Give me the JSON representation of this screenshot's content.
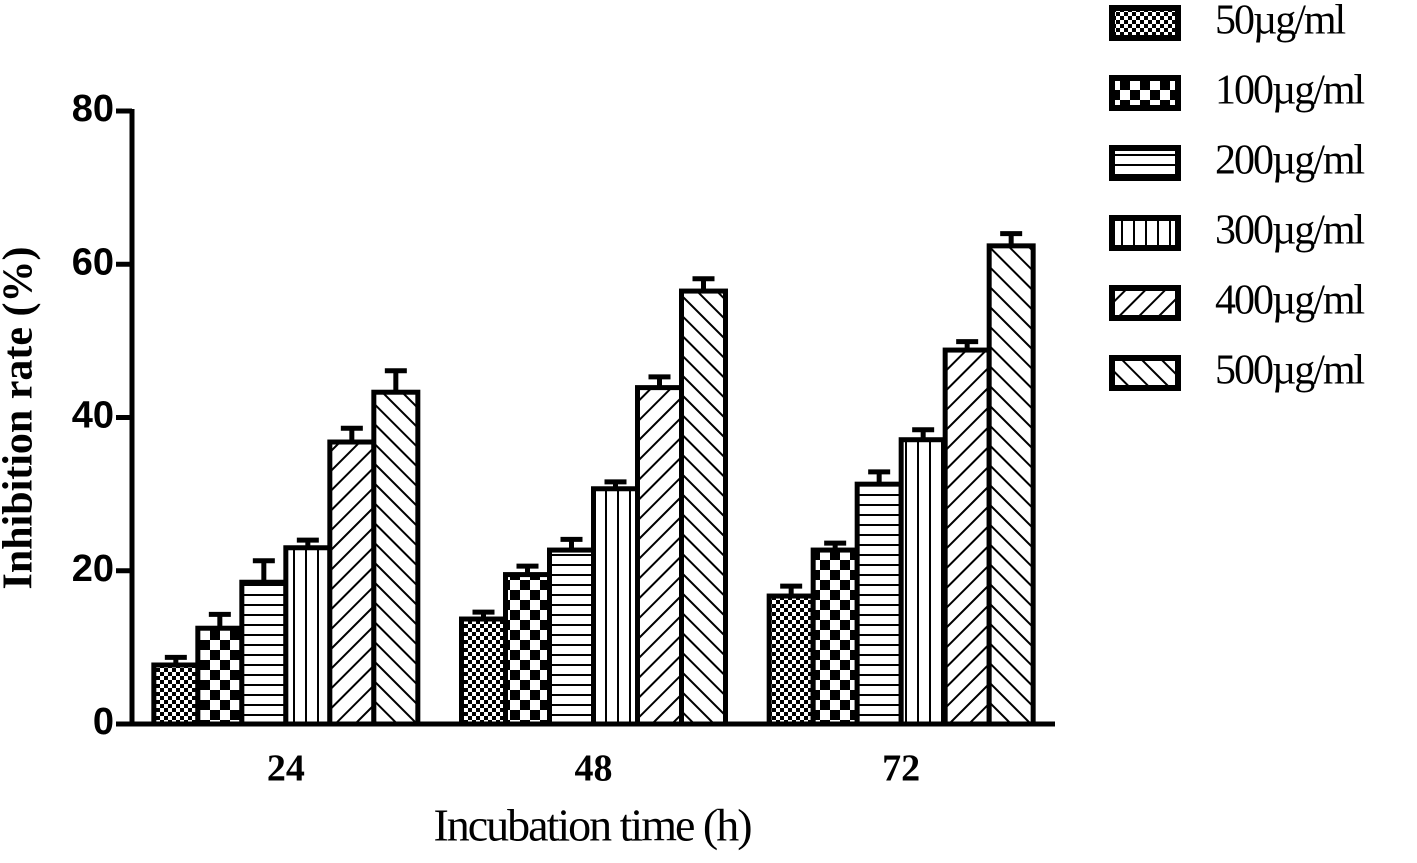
{
  "chart_data": {
    "type": "bar",
    "y_label": "Inhibition rate (%)",
    "x_label": "Incubation time (h)",
    "categories": [
      "24",
      "48",
      "72"
    ],
    "series": [
      {
        "name": "50µg/ml",
        "color": "#000000",
        "pattern": "checker-small",
        "values": [
          7.7,
          13.7,
          16.7
        ],
        "errors": [
          1.0,
          0.9,
          1.3
        ]
      },
      {
        "name": "100µg/ml",
        "color": "#000000",
        "pattern": "checker-large",
        "values": [
          12.5,
          19.5,
          22.7
        ],
        "errors": [
          1.8,
          1.1,
          0.9
        ]
      },
      {
        "name": "200µg/ml",
        "color": "#000000",
        "pattern": "horizontal",
        "values": [
          18.5,
          22.7,
          31.3
        ],
        "errors": [
          2.8,
          1.4,
          1.6
        ]
      },
      {
        "name": "300µg/ml",
        "color": "#000000",
        "pattern": "vertical",
        "values": [
          23.0,
          30.7,
          37.1
        ],
        "errors": [
          1.0,
          0.9,
          1.3
        ]
      },
      {
        "name": "400µg/ml",
        "color": "#000000",
        "pattern": "forward-diagonal",
        "values": [
          36.8,
          43.9,
          48.8
        ],
        "errors": [
          1.8,
          1.4,
          1.1
        ]
      },
      {
        "name": "500µg/ml",
        "color": "#000000",
        "pattern": "back-diagonal",
        "values": [
          43.3,
          56.5,
          62.4
        ],
        "errors": [
          2.8,
          1.6,
          1.6
        ]
      }
    ],
    "ylim": [
      0,
      80
    ],
    "yticks": [
      0,
      20,
      40,
      60,
      80
    ]
  }
}
